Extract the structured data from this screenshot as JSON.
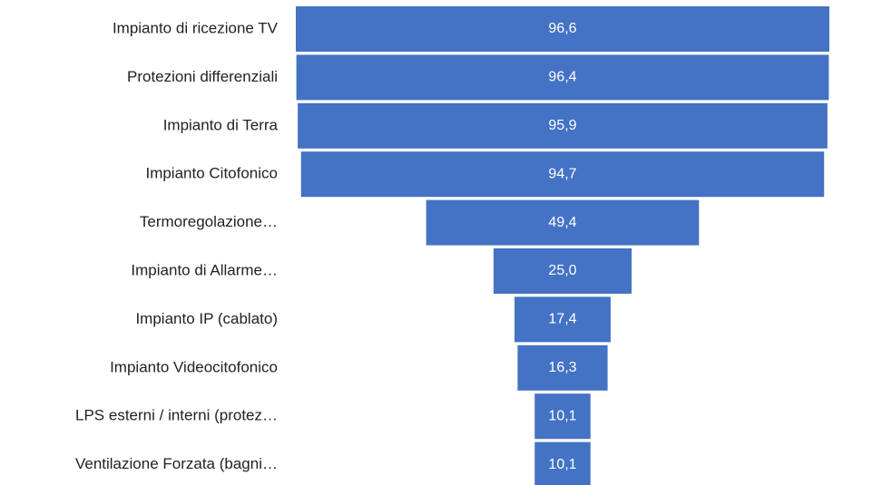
{
  "chart_data": {
    "type": "funnel",
    "categories": [
      "Impianto di ricezione TV",
      "Protezioni differenziali",
      "Impianto di Terra",
      "Impianto Citofonico",
      "Termoregolazione…",
      "Impianto di Allarme…",
      "Impianto IP (cablato)",
      "Impianto Videocitofonico",
      "LPS esterni / interni (protez…",
      "Ventilazione Forzata (bagni…"
    ],
    "values": [
      96.6,
      96.4,
      95.9,
      94.7,
      49.4,
      25.0,
      17.4,
      16.3,
      10.1,
      10.1
    ],
    "value_labels": [
      "96,6",
      "96,4",
      "95,9",
      "94,7",
      "49,4",
      "25,0",
      "17,4",
      "16,3",
      "10,1",
      "10,1"
    ],
    "color": "#4472c4"
  }
}
